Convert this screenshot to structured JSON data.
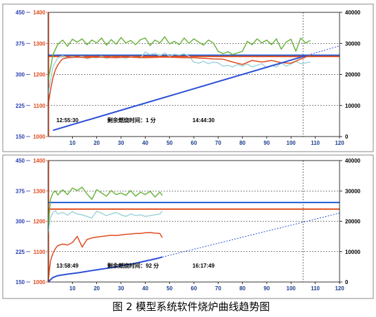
{
  "caption": "图 2    模型系统软件烧炉曲线趋势图",
  "chart_data": [
    {
      "type": "line",
      "title": "",
      "xlim": [
        0,
        120
      ],
      "x_ticks": [
        10,
        20,
        30,
        40,
        50,
        60,
        70,
        80,
        90,
        100,
        110,
        120
      ],
      "y_left_outer": {
        "range": [
          150,
          450
        ],
        "ticks": [
          150,
          225,
          300,
          375,
          450
        ],
        "color": "#2b3fb0"
      },
      "y_left_inner": {
        "range": [
          1000,
          1400
        ],
        "ticks": [
          1000,
          1100,
          1200,
          1300,
          1400
        ],
        "color": "#e04a1c"
      },
      "y_right": {
        "range": [
          0,
          40000
        ],
        "ticks": [
          0,
          10000,
          20000,
          30000,
          40000
        ],
        "color": "#000000"
      },
      "grid": true,
      "annotations": {
        "start_time": "12:55:30",
        "remaining": "剩余燃烧时间：1 分",
        "end_time": "14:44:30"
      },
      "cursor_x": 105,
      "reference_lines": [
        {
          "axis": "inner",
          "value": 1262,
          "color": "#1f5bd6"
        },
        {
          "axis": "inner",
          "value": 1258,
          "color": "#e04a1c"
        }
      ],
      "series": [
        {
          "axis": "outer",
          "color": "#6db33f",
          "x": [
            0,
            2,
            4,
            6,
            8,
            10,
            12,
            14,
            16,
            18,
            20,
            22,
            24,
            26,
            28,
            30,
            32,
            34,
            36,
            38,
            40,
            42,
            44,
            46,
            48,
            50,
            52,
            54,
            56,
            58,
            60,
            62,
            64,
            66,
            68,
            70,
            72,
            74,
            76,
            78,
            80,
            82,
            84,
            86,
            88,
            90,
            92,
            94,
            96,
            98,
            100,
            102,
            104,
            106,
            108
          ],
          "y": [
            285,
            348,
            373,
            383,
            368,
            385,
            378,
            386,
            372,
            383,
            376,
            388,
            371,
            384,
            373,
            389,
            376,
            382,
            372,
            384,
            388,
            370,
            383,
            376,
            391,
            374,
            380,
            372,
            388,
            375,
            386,
            378,
            371,
            383,
            376,
            356,
            350,
            355,
            348,
            352,
            356,
            380,
            372,
            386,
            376,
            383,
            372,
            386,
            361,
            378,
            385,
            356,
            388,
            376,
            382
          ]
        },
        {
          "axis": "outer",
          "color": "#9fd4dc",
          "x": [
            0,
            2,
            4,
            6,
            8,
            10,
            12,
            14,
            16,
            18,
            20,
            22,
            24,
            26,
            28,
            30,
            32,
            34,
            36,
            38,
            40,
            42,
            44,
            46,
            48,
            50,
            52,
            54,
            56,
            58,
            60,
            62,
            64,
            66,
            68,
            70,
            72,
            74,
            76,
            78,
            80,
            82,
            84,
            86,
            88,
            90,
            92,
            94,
            96,
            98,
            100,
            102,
            104,
            106,
            108
          ],
          "y": [
            250,
            320,
            340,
            345,
            340,
            343,
            341,
            344,
            338,
            342,
            340,
            344,
            339,
            342,
            340,
            342,
            339,
            343,
            341,
            340,
            354,
            348,
            351,
            345,
            352,
            344,
            349,
            347,
            350,
            344,
            330,
            327,
            332,
            326,
            330,
            328,
            320,
            322,
            318,
            324,
            320,
            325,
            318,
            322,
            326,
            316,
            322,
            318,
            328,
            320,
            325,
            332,
            326,
            328,
            330
          ]
        },
        {
          "axis": "inner",
          "color": "#e04a1c",
          "x": [
            0,
            1,
            2,
            3,
            4,
            5,
            6,
            8,
            10,
            12,
            14,
            16,
            18,
            20,
            24,
            28,
            32,
            36,
            40,
            44,
            48,
            52,
            56,
            60,
            64,
            68,
            72,
            76,
            80,
            84,
            88,
            92,
            96,
            100,
            104,
            108
          ],
          "y": [
            1100,
            1150,
            1190,
            1215,
            1230,
            1242,
            1250,
            1254,
            1255,
            1256,
            1255,
            1254,
            1255,
            1256,
            1255,
            1254,
            1256,
            1255,
            1254,
            1255,
            1256,
            1255,
            1254,
            1254,
            1252,
            1250,
            1249,
            1240,
            1232,
            1245,
            1240,
            1245,
            1238,
            1236,
            1250,
            1262
          ]
        },
        {
          "axis": "right",
          "color": "#2b4fd6",
          "x": [
            2,
            106
          ],
          "y": [
            2000,
            26000
          ]
        },
        {
          "axis": "right",
          "color": "#2b4fd6",
          "dashed": true,
          "x": [
            106,
            120
          ],
          "y": [
            26000,
            29200
          ]
        }
      ]
    },
    {
      "type": "line",
      "title": "",
      "xlim": [
        0,
        120
      ],
      "x_ticks": [
        10,
        20,
        30,
        40,
        50,
        60,
        70,
        80,
        90,
        100,
        110,
        120
      ],
      "y_left_outer": {
        "range": [
          150,
          450
        ],
        "ticks": [
          150,
          225,
          300,
          375,
          450
        ],
        "color": "#2b3fb0"
      },
      "y_left_inner": {
        "range": [
          1000,
          1400
        ],
        "ticks": [
          1000,
          1100,
          1200,
          1300,
          1400
        ],
        "color": "#e04a1c"
      },
      "y_right": {
        "range": [
          0,
          40000
        ],
        "ticks": [
          0,
          10000,
          20000,
          30000,
          40000
        ],
        "color": "#000000"
      },
      "grid": true,
      "annotations": {
        "start_time": "13:58:49",
        "remaining": "剩余燃烧时间：92 分",
        "end_time": "16:17:49"
      },
      "cursor_x": 105,
      "reference_lines": [
        {
          "axis": "inner",
          "value": 1262,
          "color": "#1f5bd6"
        },
        {
          "axis": "inner",
          "value": 1240,
          "color": "#e04a1c"
        }
      ],
      "series": [
        {
          "axis": "outer",
          "color": "#6db33f",
          "x": [
            0,
            1,
            2,
            3,
            4,
            6,
            8,
            10,
            12,
            14,
            16,
            18,
            20,
            22,
            24,
            26,
            28,
            30,
            32,
            34,
            36,
            38,
            40,
            42,
            44,
            46,
            47
          ],
          "y": [
            280,
            355,
            370,
            375,
            365,
            378,
            366,
            382,
            376,
            384,
            368,
            354,
            378,
            370,
            362,
            376,
            366,
            370,
            364,
            376,
            362,
            372,
            366,
            374,
            360,
            372,
            364
          ]
        },
        {
          "axis": "outer",
          "color": "#9fd4dc",
          "x": [
            0,
            1,
            2,
            3,
            4,
            6,
            8,
            10,
            12,
            14,
            16,
            18,
            20,
            22,
            24,
            26,
            28,
            30,
            32,
            34,
            36,
            38,
            40,
            42,
            44,
            46,
            47
          ],
          "y": [
            270,
            310,
            322,
            326,
            318,
            322,
            315,
            324,
            318,
            316,
            312,
            308,
            325,
            320,
            314,
            318,
            322,
            316,
            312,
            318,
            314,
            316,
            312,
            314,
            316,
            318,
            325
          ]
        },
        {
          "axis": "inner",
          "color": "#e04a1c",
          "x": [
            0,
            1,
            2,
            3,
            4,
            6,
            8,
            10,
            12,
            14,
            16,
            18,
            20,
            22,
            24,
            26,
            28,
            30,
            32,
            34,
            36,
            38,
            40,
            42,
            44,
            46,
            47
          ],
          "y": [
            1000,
            1070,
            1095,
            1110,
            1120,
            1125,
            1122,
            1130,
            1150,
            1115,
            1140,
            1145,
            1148,
            1150,
            1152,
            1154,
            1153,
            1155,
            1157,
            1158,
            1160,
            1160,
            1162,
            1163,
            1161,
            1160,
            1146
          ]
        },
        {
          "axis": "right",
          "color": "#2b4fd6",
          "x": [
            0,
            2,
            4,
            8,
            12,
            16,
            20,
            24,
            28,
            32,
            36,
            40,
            44,
            47
          ],
          "y": [
            0,
            1500,
            2100,
            2600,
            3000,
            3500,
            4000,
            4500,
            5000,
            5600,
            6200,
            6900,
            7600,
            8200
          ]
        },
        {
          "axis": "right",
          "color": "#2b4fd6",
          "dashed": true,
          "x": [
            47,
            120
          ],
          "y": [
            8200,
            22700
          ]
        }
      ]
    }
  ]
}
